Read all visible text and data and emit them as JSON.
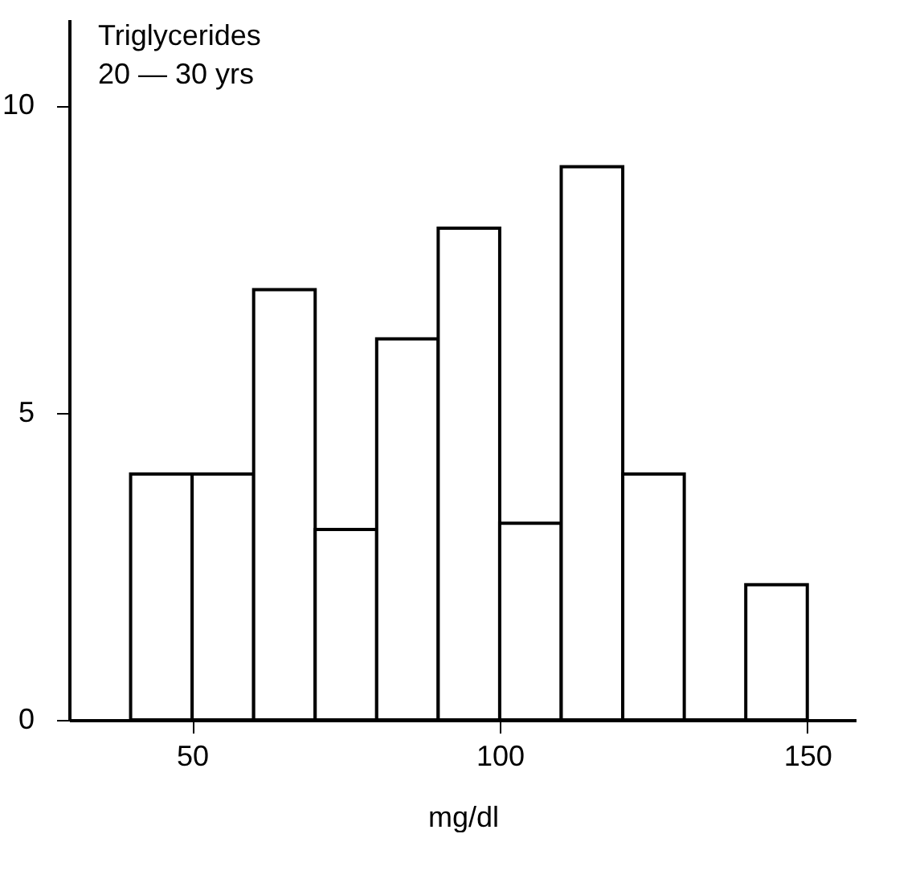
{
  "chart_data": {
    "type": "histogram",
    "title": "Triglycerides",
    "subtitle": "20 — 30 yrs",
    "xlabel": "mg/dl",
    "bins": [
      40,
      50,
      60,
      70,
      80,
      90,
      100,
      110,
      120,
      130,
      140,
      150
    ],
    "values": [
      4,
      4,
      7,
      3.1,
      6.2,
      8,
      3.2,
      9,
      4,
      0,
      2.2
    ],
    "color": "#ffffff",
    "xlim": [
      30,
      158
    ],
    "xticks": [
      50,
      100,
      150
    ],
    "ylim": [
      0,
      11.4
    ],
    "yticks": [
      0,
      5,
      10
    ],
    "grid": false
  }
}
